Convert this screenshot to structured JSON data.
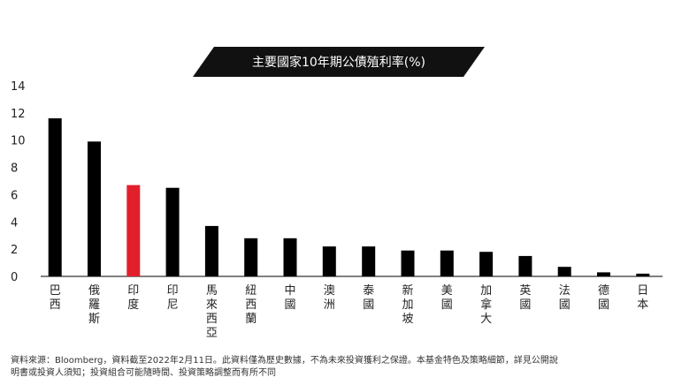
{
  "chart_data": {
    "type": "bar",
    "title": "主要國家10年期公債殖利率(%)",
    "categories": [
      "巴西",
      "俄羅斯",
      "印度",
      "印尼",
      "馬來西亞",
      "紐西蘭",
      "中國",
      "澳洲",
      "泰國",
      "新加坡",
      "美國",
      "加拿大",
      "英國",
      "法國",
      "德國",
      "日本"
    ],
    "values": [
      11.6,
      9.9,
      6.7,
      6.5,
      3.7,
      2.8,
      2.8,
      2.2,
      2.2,
      1.9,
      1.9,
      1.8,
      1.5,
      0.7,
      0.3,
      0.2
    ],
    "highlight_category": "印度",
    "colors": {
      "default": "#000000",
      "highlight": "#e2202c",
      "title_bg": "#111111"
    },
    "yticks": [
      0,
      2,
      4,
      6,
      8,
      10,
      12,
      14
    ],
    "ylim": [
      0,
      14
    ],
    "grid": false,
    "xlabel": "",
    "ylabel": ""
  },
  "footnote": {
    "line1": "資料來源：Bloomberg，資料截至2022年2月11日。此資料僅為歷史數據，不為未來投資獲利之保證。本基金特色及策略細節，詳見公開說",
    "line2": "明書或投資人須知；投資組合可能隨時間、投資策略調整而有所不同"
  }
}
